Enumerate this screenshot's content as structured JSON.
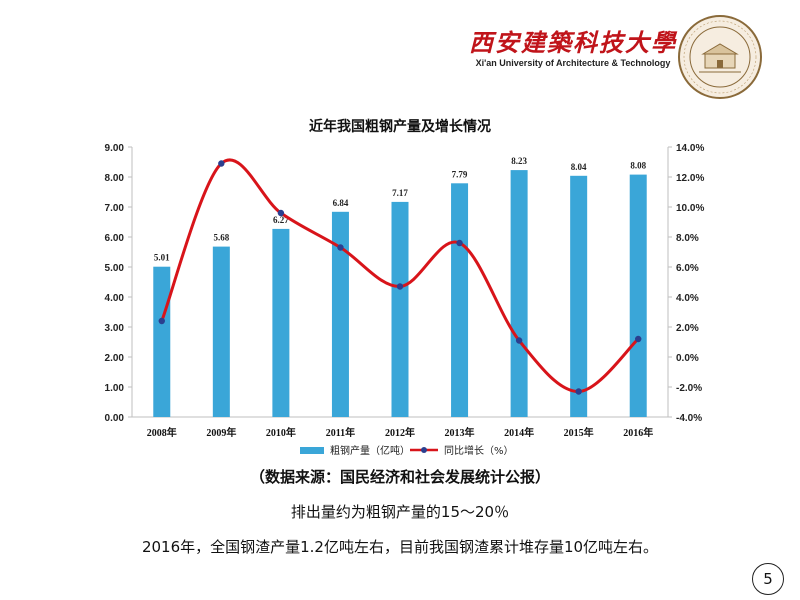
{
  "header": {
    "logo_cn": "西安建築科技大學",
    "logo_en": "Xi'an University of Architecture & Technology"
  },
  "chart_data": {
    "type": "bar",
    "title": "近年我国粗钢产量及增长情况",
    "categories": [
      "2008年",
      "2009年",
      "2010年",
      "2011年",
      "2012年",
      "2013年",
      "2014年",
      "2015年",
      "2016年"
    ],
    "series": [
      {
        "name": "粗钢产量（亿吨）",
        "type": "bar",
        "axis": "left",
        "color": "#3aa6d8",
        "values": [
          5.01,
          5.68,
          6.27,
          6.84,
          7.17,
          7.79,
          8.23,
          8.04,
          8.08
        ],
        "labels": [
          "5.01",
          "5.68",
          "6.27",
          "6.84",
          "7.17",
          "7.79",
          "8.23",
          "8.04",
          "8.08"
        ]
      },
      {
        "name": "同比增长（%）",
        "type": "line",
        "axis": "right",
        "color": "#d8141a",
        "marker_color": "#2b3f8f",
        "values": [
          2.4,
          12.9,
          9.6,
          7.3,
          4.7,
          7.6,
          1.1,
          -2.3,
          1.2
        ]
      }
    ],
    "y_left": {
      "range": [
        0,
        9
      ],
      "ticks": [
        "0.00",
        "1.00",
        "2.00",
        "3.00",
        "4.00",
        "5.00",
        "6.00",
        "7.00",
        "8.00",
        "9.00"
      ]
    },
    "y_right": {
      "range": [
        -4,
        14
      ],
      "ticks": [
        "-4.0%",
        "-2.0%",
        "0.0%",
        "2.0%",
        "4.0%",
        "6.0%",
        "8.0%",
        "10.0%",
        "12.0%",
        "14.0%"
      ]
    },
    "grid": false,
    "legend": "bottom"
  },
  "source_note": "（数据来源：国民经济和社会发展统计公报）",
  "body_text": {
    "line1": "排出量约为粗钢产量的15～20％",
    "line2": "2016年，全国钢渣产量1.2亿吨左右，目前我国钢渣累计堆存量10亿吨左右。"
  },
  "page_number": "5"
}
